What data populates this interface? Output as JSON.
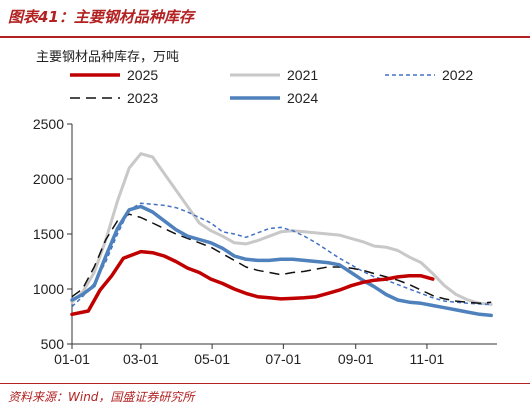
{
  "figure_title": "图表41：主要钢材品种库存",
  "source_note": "资料来源：Wind，国盛证券研究所",
  "colors": {
    "accent": "#b22222"
  },
  "chart_data": {
    "type": "line",
    "title": "",
    "subtitle": "主要钢材品种库存，万吨",
    "xlabel": "",
    "ylabel": "",
    "x_unit": "day of year (Jan 1 = 1)",
    "xlim": [
      1,
      365
    ],
    "ylim": [
      500,
      2500
    ],
    "yticks": [
      500,
      1000,
      1500,
      2000,
      2500
    ],
    "xticks": [
      {
        "label": "01-01",
        "x": 1
      },
      {
        "label": "03-01",
        "x": 60
      },
      {
        "label": "05-01",
        "x": 121
      },
      {
        "label": "07-01",
        "x": 182
      },
      {
        "label": "09-01",
        "x": 244
      },
      {
        "label": "11-01",
        "x": 305
      }
    ],
    "grid": false,
    "legend_position": "top",
    "series": [
      {
        "name": "2025",
        "color": "#c00000",
        "dash": "solid",
        "width": 3.5,
        "points": [
          [
            1,
            770
          ],
          [
            15,
            800
          ],
          [
            25,
            990
          ],
          [
            35,
            1120
          ],
          [
            45,
            1280
          ],
          [
            60,
            1340
          ],
          [
            70,
            1330
          ],
          [
            80,
            1300
          ],
          [
            90,
            1250
          ],
          [
            100,
            1190
          ],
          [
            110,
            1150
          ],
          [
            120,
            1090
          ],
          [
            130,
            1050
          ],
          [
            140,
            1000
          ],
          [
            150,
            960
          ],
          [
            160,
            930
          ],
          [
            170,
            920
          ],
          [
            180,
            910
          ],
          [
            190,
            915
          ],
          [
            200,
            920
          ],
          [
            210,
            930
          ],
          [
            220,
            960
          ],
          [
            230,
            990
          ],
          [
            240,
            1030
          ],
          [
            250,
            1060
          ],
          [
            260,
            1080
          ],
          [
            270,
            1090
          ],
          [
            280,
            1110
          ],
          [
            290,
            1120
          ],
          [
            300,
            1120
          ],
          [
            310,
            1090
          ]
        ]
      },
      {
        "name": "2021",
        "color": "#c8c8c8",
        "dash": "solid",
        "width": 3,
        "points": [
          [
            1,
            880
          ],
          [
            10,
            970
          ],
          [
            20,
            1150
          ],
          [
            30,
            1450
          ],
          [
            40,
            1800
          ],
          [
            50,
            2100
          ],
          [
            60,
            2230
          ],
          [
            70,
            2200
          ],
          [
            80,
            2050
          ],
          [
            90,
            1900
          ],
          [
            100,
            1750
          ],
          [
            110,
            1600
          ],
          [
            120,
            1530
          ],
          [
            130,
            1480
          ],
          [
            140,
            1420
          ],
          [
            150,
            1410
          ],
          [
            160,
            1440
          ],
          [
            170,
            1480
          ],
          [
            180,
            1520
          ],
          [
            190,
            1530
          ],
          [
            200,
            1520
          ],
          [
            210,
            1510
          ],
          [
            220,
            1500
          ],
          [
            230,
            1490
          ],
          [
            240,
            1460
          ],
          [
            250,
            1430
          ],
          [
            260,
            1390
          ],
          [
            270,
            1380
          ],
          [
            280,
            1350
          ],
          [
            290,
            1290
          ],
          [
            300,
            1240
          ],
          [
            310,
            1140
          ],
          [
            320,
            1030
          ],
          [
            330,
            950
          ],
          [
            340,
            900
          ],
          [
            350,
            870
          ],
          [
            360,
            860
          ]
        ]
      },
      {
        "name": "2022",
        "color": "#4472c4",
        "dash": "dash-fine",
        "width": 1.5,
        "points": [
          [
            1,
            840
          ],
          [
            10,
            930
          ],
          [
            20,
            1050
          ],
          [
            30,
            1250
          ],
          [
            40,
            1500
          ],
          [
            50,
            1720
          ],
          [
            60,
            1780
          ],
          [
            70,
            1770
          ],
          [
            80,
            1760
          ],
          [
            90,
            1740
          ],
          [
            100,
            1700
          ],
          [
            110,
            1650
          ],
          [
            120,
            1600
          ],
          [
            130,
            1520
          ],
          [
            140,
            1500
          ],
          [
            150,
            1470
          ],
          [
            160,
            1510
          ],
          [
            170,
            1550
          ],
          [
            180,
            1560
          ],
          [
            190,
            1530
          ],
          [
            200,
            1480
          ],
          [
            210,
            1420
          ],
          [
            220,
            1350
          ],
          [
            230,
            1280
          ],
          [
            240,
            1220
          ],
          [
            250,
            1160
          ],
          [
            260,
            1110
          ],
          [
            270,
            1080
          ],
          [
            280,
            1040
          ],
          [
            290,
            1000
          ],
          [
            300,
            960
          ],
          [
            310,
            920
          ],
          [
            320,
            890
          ],
          [
            330,
            880
          ],
          [
            340,
            870
          ],
          [
            350,
            865
          ],
          [
            360,
            860
          ]
        ]
      },
      {
        "name": "2023",
        "color": "#111111",
        "dash": "dash-coarse",
        "width": 1.5,
        "points": [
          [
            1,
            930
          ],
          [
            10,
            1000
          ],
          [
            20,
            1200
          ],
          [
            30,
            1450
          ],
          [
            40,
            1620
          ],
          [
            50,
            1680
          ],
          [
            60,
            1650
          ],
          [
            70,
            1600
          ],
          [
            80,
            1550
          ],
          [
            90,
            1500
          ],
          [
            100,
            1460
          ],
          [
            110,
            1420
          ],
          [
            120,
            1380
          ],
          [
            130,
            1320
          ],
          [
            140,
            1260
          ],
          [
            150,
            1200
          ],
          [
            160,
            1170
          ],
          [
            170,
            1150
          ],
          [
            180,
            1130
          ],
          [
            190,
            1150
          ],
          [
            200,
            1160
          ],
          [
            210,
            1180
          ],
          [
            220,
            1200
          ],
          [
            230,
            1200
          ],
          [
            240,
            1190
          ],
          [
            250,
            1170
          ],
          [
            260,
            1140
          ],
          [
            270,
            1110
          ],
          [
            280,
            1080
          ],
          [
            290,
            1040
          ],
          [
            300,
            990
          ],
          [
            310,
            940
          ],
          [
            320,
            910
          ],
          [
            330,
            890
          ],
          [
            340,
            880
          ],
          [
            350,
            870
          ],
          [
            360,
            880
          ]
        ]
      },
      {
        "name": "2024",
        "color": "#4f81bd",
        "dash": "solid",
        "width": 3.5,
        "points": [
          [
            1,
            900
          ],
          [
            10,
            950
          ],
          [
            20,
            1030
          ],
          [
            30,
            1300
          ],
          [
            40,
            1550
          ],
          [
            50,
            1720
          ],
          [
            60,
            1750
          ],
          [
            70,
            1700
          ],
          [
            80,
            1620
          ],
          [
            90,
            1540
          ],
          [
            100,
            1480
          ],
          [
            110,
            1450
          ],
          [
            120,
            1420
          ],
          [
            130,
            1370
          ],
          [
            140,
            1300
          ],
          [
            150,
            1270
          ],
          [
            160,
            1260
          ],
          [
            170,
            1260
          ],
          [
            180,
            1270
          ],
          [
            190,
            1270
          ],
          [
            200,
            1260
          ],
          [
            210,
            1250
          ],
          [
            220,
            1240
          ],
          [
            230,
            1220
          ],
          [
            240,
            1150
          ],
          [
            250,
            1080
          ],
          [
            260,
            1020
          ],
          [
            270,
            950
          ],
          [
            280,
            900
          ],
          [
            290,
            880
          ],
          [
            300,
            870
          ],
          [
            310,
            850
          ],
          [
            320,
            830
          ],
          [
            330,
            810
          ],
          [
            340,
            790
          ],
          [
            350,
            770
          ],
          [
            360,
            760
          ]
        ]
      }
    ]
  }
}
